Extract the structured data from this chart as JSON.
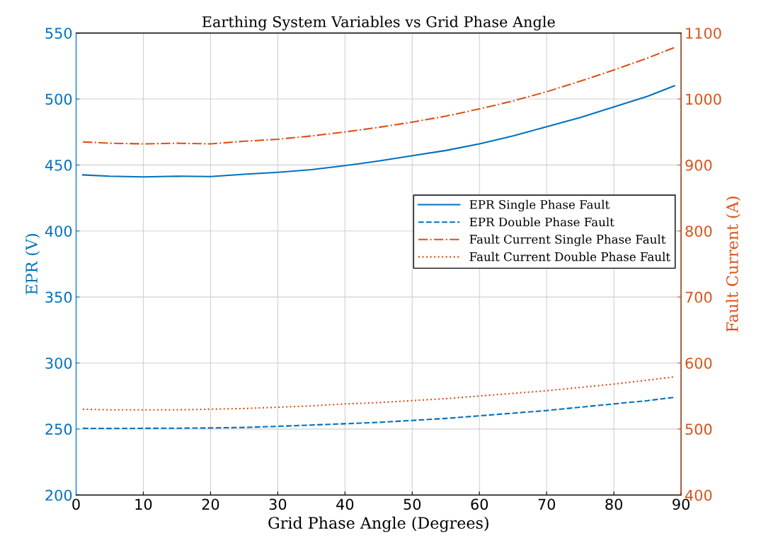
{
  "chart_data": {
    "type": "line",
    "title": "Earthing System Variables vs Grid Phase Angle",
    "xlabel": "Grid Phase Angle (Degrees)",
    "ylabel": "EPR (V)",
    "y2label": "Fault Current (A)",
    "x": [
      1,
      5,
      10,
      15,
      20,
      25,
      30,
      35,
      40,
      45,
      50,
      55,
      60,
      65,
      70,
      75,
      80,
      85,
      89
    ],
    "series": [
      {
        "name": "EPR Single Phase Fault",
        "color": "#0072bd",
        "line_style": "solid",
        "values": [
          442.5,
          441.5,
          441,
          441.5,
          441.2,
          443,
          444.5,
          446.5,
          449.5,
          453,
          457,
          461,
          466,
          472,
          479,
          486,
          494,
          502,
          510
        ]
      },
      {
        "name": "EPR Double Phase Fault",
        "color": "#0072bd",
        "line_style": "dashed",
        "values": [
          250.5,
          250.4,
          250.5,
          250.6,
          250.8,
          251.2,
          252,
          253,
          254,
          255,
          256.5,
          258,
          260,
          262,
          264,
          266.5,
          269,
          271.5,
          274
        ]
      },
      {
        "name": "Fault Current Single Phase Fault",
        "color": "#d95319",
        "line_style": "dashdot",
        "axis": "y2",
        "values": [
          935,
          933,
          932,
          933,
          932,
          936,
          939,
          944,
          950,
          957,
          965,
          974,
          985,
          997,
          1011,
          1027,
          1044,
          1062,
          1078
        ]
      },
      {
        "name": "Fault Current Double Phase Fault",
        "color": "#d95319",
        "line_style": "dotted",
        "axis": "y2",
        "values": [
          530,
          529,
          529,
          529,
          530,
          531,
          533,
          535,
          538,
          540,
          543,
          546,
          550,
          554,
          558,
          563,
          568,
          574,
          579
        ]
      }
    ],
    "xlim": [
      0,
      90
    ],
    "xticks": [
      0,
      10,
      20,
      30,
      40,
      50,
      60,
      70,
      80,
      90
    ],
    "ylim": [
      200,
      550
    ],
    "yticks": [
      200,
      250,
      300,
      350,
      400,
      450,
      500,
      550
    ],
    "y2lim": [
      400,
      1100
    ],
    "y2ticks": [
      400,
      500,
      600,
      700,
      800,
      900,
      1000,
      1100
    ],
    "grid": true,
    "legend": "right",
    "marker": "none"
  }
}
